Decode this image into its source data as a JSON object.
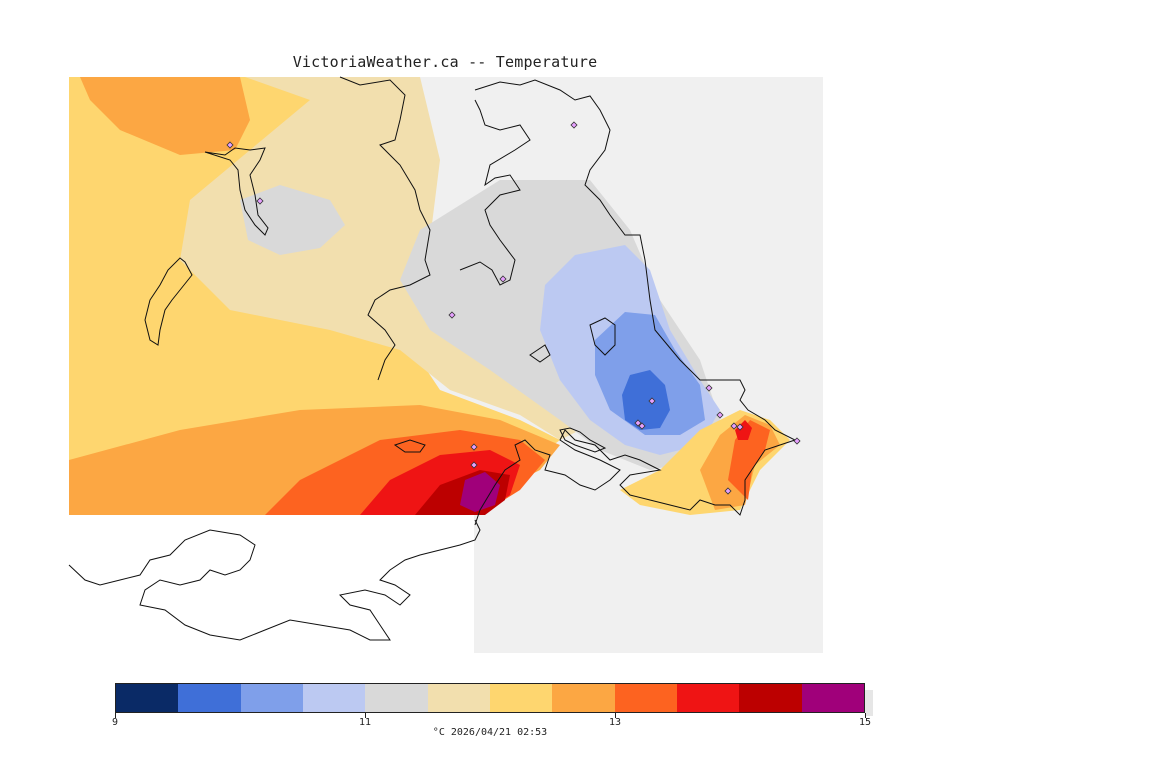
{
  "title": "VictoriaWeather.ca -- Temperature",
  "colorbar": {
    "colors": [
      "#0a2a66",
      "#3f6fd8",
      "#7f9fea",
      "#bcc9f2",
      "#d9d9d9",
      "#f2dfae",
      "#fed66f",
      "#fca743",
      "#fd6320",
      "#ef1414",
      "#bc0000",
      "#a0007a"
    ],
    "ticks": [
      {
        "value": 9,
        "label": "9"
      },
      {
        "value": 11,
        "label": "11"
      },
      {
        "value": 13,
        "label": "13"
      },
      {
        "value": 15,
        "label": "15"
      }
    ],
    "min": 9,
    "max": 15
  },
  "units_label": "°C  2026/04/21 02:53"
}
